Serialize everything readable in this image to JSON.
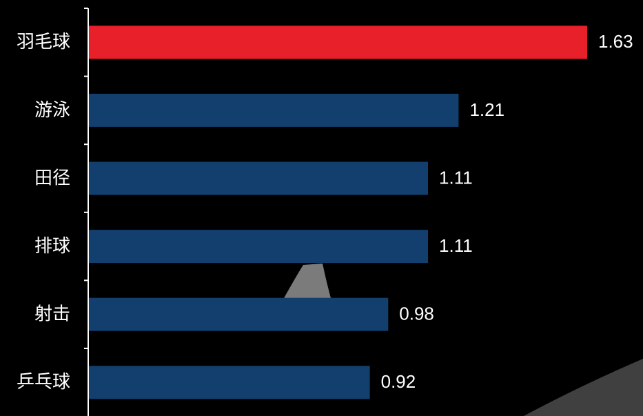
{
  "chart_data": {
    "type": "barh",
    "categories": [
      "羽毛球",
      "游泳",
      "田径",
      "排球",
      "射击",
      "乒乓球"
    ],
    "values": [
      1.63,
      1.21,
      1.11,
      1.11,
      0.98,
      0.92
    ],
    "colors": [
      "#e8202a",
      "#123f6d",
      "#123f6d",
      "#123f6d",
      "#123f6d",
      "#123f6d"
    ]
  }
}
